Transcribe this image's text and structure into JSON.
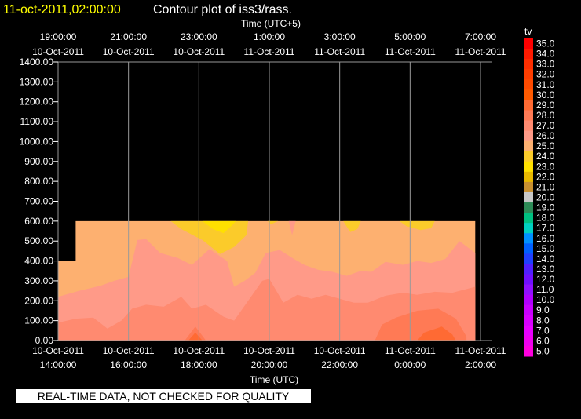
{
  "header": {
    "timestamp": "11-oct-2011,02:00:00",
    "title": "Contour plot of iss3/rass."
  },
  "quality_note": "REAL-TIME DATA, NOT CHECKED FOR QUALITY",
  "colors": {
    "background": "#000000",
    "timestamp": "#ffff00",
    "gridlines": "#999999"
  },
  "chart_data": {
    "type": "heatmap",
    "top_axis": {
      "label": "Time (UTC+5)",
      "ticks": [
        {
          "time": "19:00:00",
          "date": "10-Oct-2011"
        },
        {
          "time": "21:00:00",
          "date": "10-Oct-2011"
        },
        {
          "time": "23:00:00",
          "date": "10-Oct-2011"
        },
        {
          "time": "1:00:00",
          "date": "11-Oct-2011"
        },
        {
          "time": "3:00:00",
          "date": "11-Oct-2011"
        },
        {
          "time": "5:00:00",
          "date": "11-Oct-2011"
        },
        {
          "time": "7:00:00",
          "date": "11-Oct-2011"
        }
      ]
    },
    "bottom_axis": {
      "label": "Time (UTC)",
      "ticks": [
        {
          "date": "10-Oct-2011",
          "time": "14:00:00"
        },
        {
          "date": "10-Oct-2011",
          "time": "16:00:00"
        },
        {
          "date": "10-Oct-2011",
          "time": "18:00:00"
        },
        {
          "date": "10-Oct-2011",
          "time": "20:00:00"
        },
        {
          "date": "10-Oct-2011",
          "time": "22:00:00"
        },
        {
          "date": "11-Oct-2011",
          "time": "0:00:00"
        },
        {
          "date": "11-Oct-2011",
          "time": "2:00:00"
        }
      ]
    },
    "x_hours_utc": [
      14,
      16,
      18,
      20,
      22,
      24,
      26
    ],
    "y_ticks": [
      "0.00",
      "100.00",
      "200.00",
      "300.00",
      "400.00",
      "500.00",
      "600.00",
      "700.00",
      "800.00",
      "900.00",
      "1000.00",
      "1100.00",
      "1200.00",
      "1300.00",
      "1400.00"
    ],
    "ylim": [
      0,
      1400
    ],
    "data_extent": {
      "x_start": 14.0,
      "x_step_start": 14.5,
      "x_end": 25.85,
      "y_top_initial": 400,
      "y_top": 600
    },
    "colorbar": {
      "label": "tv",
      "levels": [
        "35.0",
        "34.0",
        "33.0",
        "32.0",
        "31.0",
        "30.0",
        "29.0",
        "28.0",
        "27.0",
        "26.0",
        "25.0",
        "24.0",
        "23.0",
        "22.0",
        "21.0",
        "20.0",
        "19.0",
        "18.0",
        "17.0",
        "16.0",
        "15.0",
        "14.0",
        "13.0",
        "12.0",
        "11.0",
        "10.0",
        "9.0",
        "8.0",
        "7.0",
        "6.0",
        "5.0"
      ],
      "colors": [
        "#ff0000",
        "#ff1a00",
        "#ff2e00",
        "#ff3d00",
        "#ff4a00",
        "#ff5a00",
        "#ff6a33",
        "#ff7a55",
        "#ff8a70",
        "#ff9a88",
        "#fdb070",
        "#fbcb2a",
        "#ffe000",
        "#e8b800",
        "#c89030",
        "#c8c8c8",
        "#2e8b57",
        "#00c080",
        "#00d0c0",
        "#0090ff",
        "#0060ff",
        "#2040ff",
        "#5020ff",
        "#7010ff",
        "#9010ff",
        "#b000ff",
        "#c800ff",
        "#d800ff",
        "#e800ff",
        "#f000f0",
        "#ff00e0"
      ]
    },
    "contours": [
      {
        "level": "25.0",
        "color": "#fdb070",
        "points": [
          [
            14.0,
            0
          ],
          [
            14.0,
            400
          ],
          [
            14.5,
            400
          ],
          [
            14.5,
            600
          ],
          [
            25.85,
            600
          ],
          [
            25.85,
            0
          ]
        ]
      },
      {
        "level": "26.0",
        "color": "#ff9a88",
        "points": [
          [
            14.0,
            0
          ],
          [
            14.0,
            220
          ],
          [
            14.6,
            250
          ],
          [
            15.2,
            275
          ],
          [
            15.6,
            300
          ],
          [
            16.0,
            320
          ],
          [
            16.25,
            505
          ],
          [
            16.5,
            510
          ],
          [
            16.9,
            440
          ],
          [
            17.4,
            415
          ],
          [
            17.8,
            380
          ],
          [
            18.3,
            460
          ],
          [
            18.8,
            400
          ],
          [
            19.0,
            270
          ],
          [
            19.3,
            300
          ],
          [
            19.6,
            340
          ],
          [
            19.9,
            440
          ],
          [
            20.3,
            455
          ],
          [
            20.7,
            410
          ],
          [
            21.0,
            380
          ],
          [
            21.4,
            355
          ],
          [
            21.8,
            345
          ],
          [
            22.2,
            325
          ],
          [
            22.6,
            350
          ],
          [
            22.9,
            345
          ],
          [
            23.3,
            395
          ],
          [
            23.8,
            380
          ],
          [
            24.2,
            400
          ],
          [
            24.6,
            390
          ],
          [
            25.0,
            410
          ],
          [
            25.4,
            500
          ],
          [
            25.85,
            440
          ],
          [
            25.85,
            0
          ]
        ]
      },
      {
        "level": "27.0",
        "color": "#ff8a70",
        "points": [
          [
            14.0,
            0
          ],
          [
            14.0,
            90
          ],
          [
            14.5,
            110
          ],
          [
            15.0,
            115
          ],
          [
            15.4,
            60
          ],
          [
            15.8,
            100
          ],
          [
            16.1,
            160
          ],
          [
            16.5,
            180
          ],
          [
            17.0,
            170
          ],
          [
            17.5,
            220
          ],
          [
            17.8,
            160
          ],
          [
            18.2,
            180
          ],
          [
            18.7,
            120
          ],
          [
            19.0,
            100
          ],
          [
            19.4,
            200
          ],
          [
            19.8,
            300
          ],
          [
            20.0,
            310
          ],
          [
            20.4,
            190
          ],
          [
            20.8,
            230
          ],
          [
            21.2,
            210
          ],
          [
            21.6,
            230
          ],
          [
            22.0,
            210
          ],
          [
            22.4,
            190
          ],
          [
            22.8,
            190
          ],
          [
            23.3,
            225
          ],
          [
            23.8,
            240
          ],
          [
            24.2,
            230
          ],
          [
            24.7,
            245
          ],
          [
            25.2,
            240
          ],
          [
            25.85,
            270
          ],
          [
            25.85,
            0
          ]
        ]
      },
      {
        "level": "28.0",
        "color": "#ff7a55",
        "points": [
          [
            23.0,
            0
          ],
          [
            23.2,
            80
          ],
          [
            23.6,
            115
          ],
          [
            24.2,
            150
          ],
          [
            24.8,
            160
          ],
          [
            25.3,
            110
          ],
          [
            25.6,
            20
          ],
          [
            25.6,
            0
          ]
        ]
      },
      {
        "level": "28.0",
        "color": "#ff7a55",
        "points": [
          [
            17.6,
            0
          ],
          [
            17.9,
            70
          ],
          [
            18.2,
            0
          ]
        ]
      },
      {
        "level": "29.0",
        "color": "#ff6a33",
        "points": [
          [
            24.2,
            0
          ],
          [
            24.4,
            40
          ],
          [
            24.9,
            70
          ],
          [
            25.2,
            30
          ],
          [
            25.3,
            0
          ]
        ]
      },
      {
        "level": "29.0",
        "color": "#ff6a33",
        "points": [
          [
            17.7,
            0
          ],
          [
            17.9,
            40
          ],
          [
            18.1,
            0
          ]
        ]
      },
      {
        "level": "24.0",
        "color": "#fbcb2a",
        "points": [
          [
            17.2,
            600
          ],
          [
            17.5,
            560
          ],
          [
            18.1,
            505
          ],
          [
            18.6,
            435
          ],
          [
            19.0,
            470
          ],
          [
            19.35,
            530
          ],
          [
            19.4,
            600
          ]
        ]
      },
      {
        "level": "24.0",
        "color": "#fbcb2a",
        "points": [
          [
            23.7,
            600
          ],
          [
            23.9,
            575
          ],
          [
            24.3,
            555
          ],
          [
            24.6,
            565
          ],
          [
            24.7,
            600
          ]
        ]
      },
      {
        "level": "24.0",
        "color": "#fbcb2a",
        "points": [
          [
            22.1,
            600
          ],
          [
            22.3,
            545
          ],
          [
            22.5,
            560
          ],
          [
            22.6,
            600
          ]
        ]
      },
      {
        "level": "24.0",
        "color": "#fbcb2a",
        "points": [
          [
            19.95,
            600
          ],
          [
            20.05,
            585
          ],
          [
            20.25,
            600
          ]
        ]
      },
      {
        "level": "23.0",
        "color": "#ffe000",
        "points": [
          [
            18.1,
            600
          ],
          [
            18.4,
            560
          ],
          [
            18.7,
            540
          ],
          [
            18.95,
            580
          ],
          [
            19.05,
            600
          ]
        ]
      },
      {
        "level": "26.0",
        "color": "#ff9a88",
        "points": [
          [
            20.55,
            600
          ],
          [
            20.65,
            530
          ],
          [
            20.75,
            600
          ]
        ]
      }
    ]
  }
}
